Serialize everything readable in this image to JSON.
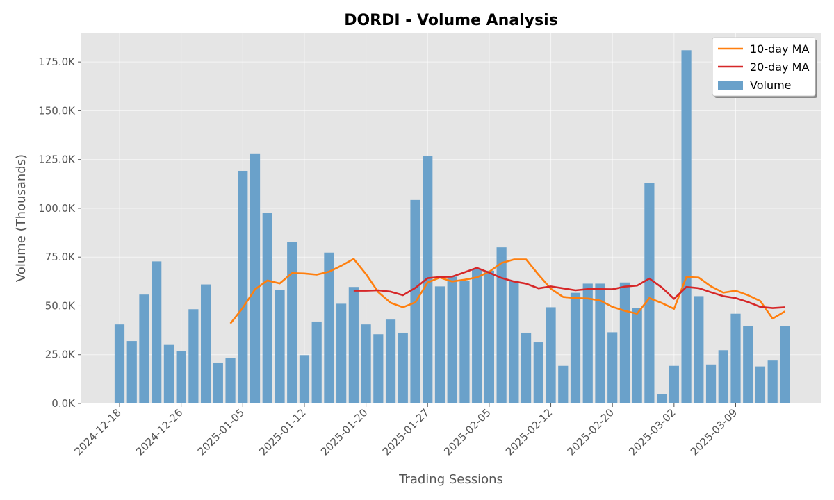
{
  "chart_data": {
    "type": "bar",
    "title": "DORDI - Volume Analysis",
    "xlabel": "Trading Sessions",
    "ylabel": "Volume (Thousands)",
    "ylim": [
      0,
      190000
    ],
    "yticks": [
      0,
      25000,
      50000,
      75000,
      100000,
      125000,
      150000,
      175000
    ],
    "ytick_labels": [
      "0.0K",
      "25.0K",
      "50.0K",
      "75.0K",
      "100.0K",
      "125.0K",
      "150.0K",
      "175.0K"
    ],
    "xtick_labels": [
      "2024-12-18",
      "2024-12-26",
      "2025-01-05",
      "2025-01-12",
      "2025-01-20",
      "2025-01-27",
      "2025-02-05",
      "2025-02-12",
      "2025-02-20",
      "2025-03-02",
      "2025-03-09"
    ],
    "xtick_index": [
      0,
      5,
      10,
      15,
      20,
      25,
      30,
      35,
      40,
      45,
      50
    ],
    "grid": true,
    "legend_position": "top-right",
    "colors": {
      "volume": "#6aa1ca",
      "ma10": "#ff7f0e",
      "ma20": "#d62728",
      "plot_bg": "#e5e5e5"
    },
    "series": [
      {
        "name": "Volume",
        "kind": "bar",
        "values": [
          40500,
          32000,
          55800,
          72800,
          30000,
          27000,
          48300,
          61000,
          21000,
          23200,
          119200,
          127800,
          97700,
          58300,
          82600,
          24800,
          42000,
          77300,
          51100,
          59700,
          40500,
          35500,
          43000,
          36300,
          104300,
          127000,
          60000,
          65000,
          63000,
          69000,
          68000,
          80000,
          63000,
          36300,
          31300,
          49300,
          19300,
          56700,
          61400,
          61400,
          36500,
          62000,
          49000,
          112800,
          4700,
          19300,
          181000,
          55000,
          20000,
          27300,
          46000,
          39500,
          19000,
          22000,
          39500
        ]
      },
      {
        "name": "10-day MA",
        "kind": "line",
        "values": [
          null,
          null,
          null,
          null,
          null,
          null,
          null,
          null,
          null,
          41000,
          49000,
          58500,
          63000,
          61500,
          66800,
          66600,
          66000,
          67500,
          70600,
          74100,
          66300,
          57000,
          51600,
          49300,
          51800,
          62000,
          64500,
          62500,
          63400,
          64600,
          67500,
          72000,
          73800,
          73800,
          66000,
          58800,
          54600,
          54000,
          53800,
          52800,
          49500,
          47500,
          46000,
          54000,
          51500,
          48500,
          64800,
          64500,
          60000,
          56800,
          57800,
          55500,
          52500,
          43500,
          47200
        ]
      },
      {
        "name": "20-day MA",
        "kind": "line",
        "values": [
          null,
          null,
          null,
          null,
          null,
          null,
          null,
          null,
          null,
          null,
          null,
          null,
          null,
          null,
          null,
          null,
          null,
          null,
          null,
          57800,
          57800,
          58000,
          57300,
          55500,
          59200,
          64200,
          64800,
          65000,
          67200,
          69500,
          67000,
          64300,
          62500,
          61400,
          59000,
          60000,
          59000,
          58000,
          58600,
          58600,
          58500,
          59900,
          60400,
          64000,
          59500,
          53600,
          59700,
          59100,
          57000,
          55000,
          54000,
          52000,
          49500,
          48900,
          49300
        ]
      }
    ]
  }
}
